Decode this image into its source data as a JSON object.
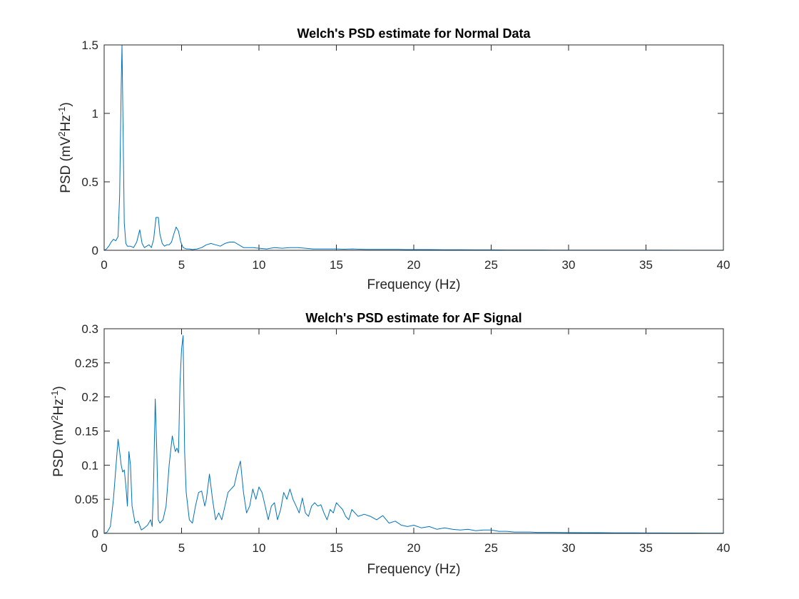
{
  "chart_data": [
    {
      "type": "line",
      "title": "Welch's PSD estimate for Normal Data",
      "xlabel": "Frequency (Hz)",
      "ylabel": {
        "base": "PSD (mV",
        "sup1": "2",
        "mid": "Hz",
        "sup2": "-1",
        "end": ")"
      },
      "xlim": [
        0,
        40
      ],
      "ylim": [
        0,
        1.5
      ],
      "xticks": [
        0,
        5,
        10,
        15,
        20,
        25,
        30,
        35,
        40
      ],
      "xtick_labels": [
        "0",
        "5",
        "10",
        "15",
        "20",
        "25",
        "30",
        "35",
        "40"
      ],
      "yticks": [
        0,
        0.5,
        1,
        1.5
      ],
      "ytick_labels": [
        "0",
        "0.5",
        "1",
        "1.5"
      ],
      "grid": false,
      "color": "#0072BD",
      "series": [
        {
          "x": [
            0,
            0.15,
            0.3,
            0.45,
            0.6,
            0.75,
            0.9,
            1.0,
            1.1,
            1.15,
            1.2,
            1.3,
            1.4,
            1.5,
            1.7,
            1.9,
            2.1,
            2.3,
            2.45,
            2.6,
            2.75,
            2.9,
            3.05,
            3.2,
            3.35,
            3.5,
            3.6,
            3.75,
            3.9,
            4.05,
            4.2,
            4.35,
            4.5,
            4.65,
            4.8,
            4.95,
            5.1,
            5.3,
            5.5,
            5.7,
            6.0,
            6.3,
            6.6,
            6.9,
            7.2,
            7.5,
            7.8,
            8.1,
            8.4,
            8.7,
            9.0,
            9.3,
            9.6,
            10.0,
            10.5,
            11.0,
            11.5,
            12.0,
            12.5,
            13.0,
            13.5,
            14.0,
            14.5,
            15.0,
            15.5,
            16.0,
            16.5,
            17.0,
            17.5,
            18.0,
            18.5,
            19.0,
            19.5,
            20.0,
            21.0,
            22.0,
            23.0,
            24.0,
            25.0,
            26.0,
            27.0,
            28.0,
            29.0,
            30.0,
            32.0,
            34.0,
            36.0,
            38.0,
            40.0
          ],
          "y": [
            0.0,
            0.01,
            0.03,
            0.06,
            0.08,
            0.07,
            0.1,
            0.4,
            1.2,
            1.5,
            1.1,
            0.2,
            0.05,
            0.03,
            0.03,
            0.02,
            0.06,
            0.15,
            0.05,
            0.02,
            0.03,
            0.04,
            0.02,
            0.08,
            0.24,
            0.24,
            0.12,
            0.05,
            0.03,
            0.04,
            0.04,
            0.06,
            0.12,
            0.17,
            0.14,
            0.06,
            0.02,
            0.01,
            0.01,
            0.005,
            0.01,
            0.02,
            0.04,
            0.05,
            0.04,
            0.03,
            0.05,
            0.06,
            0.06,
            0.04,
            0.02,
            0.02,
            0.02,
            0.015,
            0.01,
            0.02,
            0.015,
            0.02,
            0.02,
            0.015,
            0.01,
            0.01,
            0.01,
            0.01,
            0.008,
            0.01,
            0.008,
            0.007,
            0.006,
            0.007,
            0.006,
            0.006,
            0.005,
            0.005,
            0.005,
            0.004,
            0.004,
            0.003,
            0.003,
            0.002,
            0.002,
            0.002,
            0.001,
            0.001,
            0.001,
            0.001,
            0.001,
            0.0005,
            0.0005
          ]
        }
      ]
    },
    {
      "type": "line",
      "title": "Welch's PSD estimate for AF Signal",
      "xlabel": "Frequency (Hz)",
      "ylabel": {
        "base": "PSD (mV",
        "sup1": "2",
        "mid": "Hz",
        "sup2": "-1",
        "end": ")"
      },
      "xlim": [
        0,
        40
      ],
      "ylim": [
        0,
        0.3
      ],
      "xticks": [
        0,
        5,
        10,
        15,
        20,
        25,
        30,
        35,
        40
      ],
      "xtick_labels": [
        "0",
        "5",
        "10",
        "15",
        "20",
        "25",
        "30",
        "35",
        "40"
      ],
      "yticks": [
        0,
        0.05,
        0.1,
        0.15,
        0.2,
        0.25,
        0.3
      ],
      "ytick_labels": [
        "0",
        "0.05",
        "0.1",
        "0.15",
        "0.2",
        "0.25",
        "0.3"
      ],
      "grid": false,
      "color": "#0072BD",
      "series": [
        {
          "x": [
            0,
            0.2,
            0.4,
            0.6,
            0.8,
            0.9,
            1.0,
            1.1,
            1.2,
            1.3,
            1.4,
            1.5,
            1.6,
            1.7,
            1.8,
            2.0,
            2.2,
            2.4,
            2.6,
            2.8,
            3.0,
            3.1,
            3.2,
            3.3,
            3.4,
            3.5,
            3.6,
            3.8,
            4.0,
            4.2,
            4.4,
            4.5,
            4.6,
            4.7,
            4.8,
            4.9,
            5.0,
            5.1,
            5.2,
            5.3,
            5.5,
            5.7,
            5.9,
            6.1,
            6.3,
            6.5,
            6.6,
            6.8,
            7.0,
            7.2,
            7.4,
            7.6,
            7.8,
            8.0,
            8.2,
            8.4,
            8.6,
            8.8,
            9.0,
            9.2,
            9.4,
            9.6,
            9.8,
            10.0,
            10.2,
            10.4,
            10.6,
            10.8,
            11.0,
            11.2,
            11.4,
            11.6,
            11.8,
            12.0,
            12.2,
            12.4,
            12.6,
            12.8,
            13.0,
            13.2,
            13.4,
            13.6,
            13.8,
            14.0,
            14.2,
            14.4,
            14.6,
            14.8,
            15.0,
            15.2,
            15.4,
            15.6,
            15.8,
            16.0,
            16.4,
            16.8,
            17.2,
            17.6,
            18.0,
            18.4,
            18.8,
            19.2,
            19.6,
            20.0,
            20.5,
            21.0,
            21.5,
            22.0,
            22.5,
            23.0,
            23.5,
            24.0,
            24.5,
            25.0,
            25.5,
            26.0,
            26.5,
            27.0,
            27.5,
            28.0,
            29.0,
            30.0,
            31.0,
            32.0,
            33.0,
            34.0,
            35.0,
            36.0,
            37.0,
            38.0,
            39.0,
            40.0
          ],
          "y": [
            0.0,
            0.002,
            0.01,
            0.05,
            0.11,
            0.138,
            0.12,
            0.1,
            0.09,
            0.093,
            0.07,
            0.04,
            0.12,
            0.1,
            0.04,
            0.015,
            0.018,
            0.005,
            0.008,
            0.012,
            0.02,
            0.01,
            0.08,
            0.197,
            0.12,
            0.02,
            0.015,
            0.02,
            0.04,
            0.1,
            0.143,
            0.13,
            0.12,
            0.125,
            0.118,
            0.22,
            0.27,
            0.29,
            0.12,
            0.06,
            0.02,
            0.015,
            0.04,
            0.06,
            0.062,
            0.04,
            0.05,
            0.087,
            0.05,
            0.02,
            0.03,
            0.02,
            0.04,
            0.06,
            0.065,
            0.07,
            0.09,
            0.106,
            0.06,
            0.03,
            0.04,
            0.065,
            0.05,
            0.068,
            0.06,
            0.04,
            0.02,
            0.04,
            0.045,
            0.02,
            0.035,
            0.06,
            0.05,
            0.065,
            0.05,
            0.04,
            0.03,
            0.052,
            0.03,
            0.025,
            0.04,
            0.045,
            0.04,
            0.042,
            0.03,
            0.02,
            0.035,
            0.03,
            0.045,
            0.04,
            0.035,
            0.025,
            0.02,
            0.035,
            0.025,
            0.028,
            0.025,
            0.02,
            0.026,
            0.015,
            0.018,
            0.012,
            0.01,
            0.012,
            0.008,
            0.01,
            0.006,
            0.008,
            0.006,
            0.005,
            0.006,
            0.004,
            0.005,
            0.005,
            0.003,
            0.003,
            0.002,
            0.002,
            0.002,
            0.0015,
            0.0015,
            0.0012,
            0.001,
            0.001,
            0.0008,
            0.0008,
            0.0006,
            0.0006,
            0.0005,
            0.0005,
            0.0004,
            0.0004
          ]
        }
      ]
    }
  ]
}
